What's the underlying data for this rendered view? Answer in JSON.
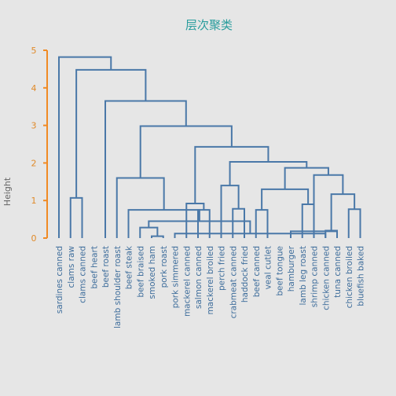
{
  "chart_data": {
    "type": "dendrogram",
    "title": "层次聚类",
    "ylabel": "Height",
    "ylim": [
      0,
      5
    ],
    "yticks": [
      0,
      1,
      2,
      3,
      4,
      5
    ],
    "colors": {
      "branch": "#4a78a8",
      "axis": "#f08a24",
      "tick_label": "#e08a2a",
      "title": "#2a9d9d",
      "background": "#e6e6e6"
    },
    "leaves": [
      "sardines canned",
      "clams raw",
      "clams canned",
      "beef heart",
      "beef roast",
      "lamb shoulder roast",
      "beef steak",
      "beef braised",
      "smoked ham",
      "pork roast",
      "pork simmered",
      "mackerel canned",
      "salmon canned",
      "mackerel broiled",
      "perch fried",
      "crabmeat canned",
      "haddock fried",
      "beef canned",
      "veal cutlet",
      "beef tongue",
      "hamburger",
      "lamb leg roast",
      "shrimp canned",
      "chicken canned",
      "tuna canned",
      "chicken broiled",
      "bluefish baked"
    ],
    "merges": [
      {
        "id": "c1",
        "left": "smoked ham",
        "right": "pork roast",
        "height": 0.05
      },
      {
        "id": "c2",
        "left": "pork simmered",
        "right": "chicken canned",
        "height": 0.12
      },
      {
        "id": "c3",
        "left": "hamburger",
        "right": "tuna canned",
        "height": 0.18
      },
      {
        "id": "c4",
        "left": "beef braised",
        "right": "c1",
        "height": 0.28
      },
      {
        "id": "c5",
        "left": "c4",
        "right": "c2",
        "height": 0.45
      },
      {
        "id": "c6",
        "left": "beef steak",
        "right": "c5",
        "height": 0.75
      },
      {
        "id": "c7",
        "left": "salmon canned",
        "right": "mackerel broiled",
        "height": 0.75
      },
      {
        "id": "c8",
        "left": "crabmeat canned",
        "right": "haddock fried",
        "height": 0.78
      },
      {
        "id": "c9",
        "left": "beef canned",
        "right": "veal cutlet",
        "height": 0.75
      },
      {
        "id": "c10",
        "left": "lamb leg roast",
        "right": "c3",
        "height": 0.9
      },
      {
        "id": "c11",
        "left": "chicken broiled",
        "right": "bluefish baked",
        "height": 0.77
      },
      {
        "id": "c12",
        "left": "mackerel canned",
        "right": "c7",
        "height": 0.92
      },
      {
        "id": "c13",
        "left": "clams raw",
        "right": "clams canned",
        "height": 1.07
      },
      {
        "id": "c14",
        "left": "c2x",
        "right": "c11",
        "height": 1.17
      },
      {
        "id": "c15",
        "left": "c9",
        "right": "c10",
        "height": 1.3
      },
      {
        "id": "c16",
        "left": "perch fried",
        "right": "c8",
        "height": 1.4
      },
      {
        "id": "c17",
        "left": "lamb shoulder roast",
        "right": "c6",
        "height": 1.6
      },
      {
        "id": "c18",
        "left": "shrimp canned",
        "right": "c14",
        "height": 1.68
      },
      {
        "id": "c19",
        "left": "c15",
        "right": "c18",
        "height": 1.87
      },
      {
        "id": "c20",
        "left": "c16",
        "right": "c19",
        "height": 2.03
      },
      {
        "id": "c21",
        "left": "c12",
        "right": "c20",
        "height": 2.43
      },
      {
        "id": "c22",
        "left": "c17",
        "right": "c21",
        "height": 2.98
      },
      {
        "id": "c23",
        "left": "beef roast",
        "right": "c22",
        "height": 3.65
      },
      {
        "id": "c24",
        "left": "c13",
        "right": "c23",
        "height": 4.48
      },
      {
        "id": "c25",
        "left": "sardines canned",
        "right": "c24",
        "height": 4.82
      }
    ]
  }
}
